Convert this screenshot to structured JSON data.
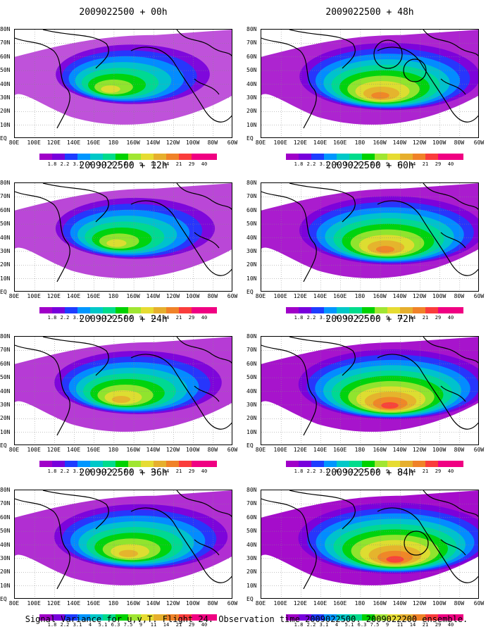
{
  "caption": "Signal Variance for u,v,T. Flight 24. Observation time 2009022500. 2009022200 ensemble.",
  "panels": [
    {
      "title": "2009022500 + 00h",
      "intensity": 0.55,
      "circles": 0
    },
    {
      "title": "2009022500 + 48h",
      "intensity": 0.85,
      "circles": 2
    },
    {
      "title": "2009022500 + 12h",
      "intensity": 0.62,
      "circles": 0
    },
    {
      "title": "2009022500 + 60h",
      "intensity": 0.9,
      "circles": 0
    },
    {
      "title": "2009022500 + 24h",
      "intensity": 0.7,
      "circles": 0
    },
    {
      "title": "2009022500 + 72h",
      "intensity": 0.95,
      "circles": 0
    },
    {
      "title": "2009022500 + 36h",
      "intensity": 0.78,
      "circles": 0
    },
    {
      "title": "2009022500 + 84h",
      "intensity": 1.0,
      "circles": 1
    }
  ],
  "lat_labels": [
    "80N",
    "70N",
    "60N",
    "50N",
    "40N",
    "30N",
    "20N",
    "10N",
    "EQ"
  ],
  "lon_labels": [
    "80E",
    "100E",
    "120E",
    "140E",
    "160E",
    "180",
    "160W",
    "140W",
    "120W",
    "100W",
    "80W",
    "60W"
  ],
  "colorbar": {
    "ticks": [
      "1.8",
      "2.2",
      "3.1",
      "4",
      "5.1",
      "6.3",
      "7.5",
      "9",
      "11",
      "14",
      "21",
      "29",
      "40"
    ],
    "colors": [
      "#a000c8",
      "#7800dc",
      "#1e3cff",
      "#0096ff",
      "#00c8c8",
      "#00dc8c",
      "#00d200",
      "#a0e632",
      "#e6dc32",
      "#e6af2d",
      "#f08228",
      "#fa3c3c",
      "#f00082"
    ]
  }
}
